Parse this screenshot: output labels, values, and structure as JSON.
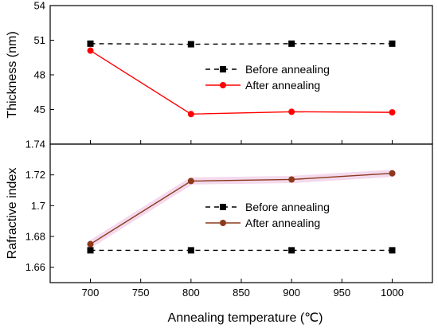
{
  "chart_data": [
    {
      "type": "line",
      "panel": "top",
      "ylabel": "Thickness (nm)",
      "xlabel": "",
      "x": [
        700,
        800,
        900,
        1000
      ],
      "xlim": [
        660,
        1040
      ],
      "ylim": [
        42,
        54
      ],
      "yticks": [
        45,
        48,
        51,
        54
      ],
      "legend_position": "center",
      "series": [
        {
          "name": "Before annealing",
          "values": [
            50.7,
            50.65,
            50.7,
            50.7
          ],
          "color": "#000000",
          "linestyle": "dashed",
          "marker": "square"
        },
        {
          "name": "After annealing",
          "values": [
            50.1,
            44.6,
            44.8,
            44.75
          ],
          "color": "#ff0000",
          "linestyle": "solid",
          "marker": "circle"
        }
      ]
    },
    {
      "type": "line",
      "panel": "bottom",
      "ylabel": "Rafractive index",
      "xlabel": "Annealing temperature (℃)",
      "x": [
        700,
        800,
        900,
        1000
      ],
      "xlim": [
        660,
        1040
      ],
      "ylim": [
        1.65,
        1.74
      ],
      "yticks": [
        1.66,
        1.68,
        1.7,
        1.72,
        1.74
      ],
      "ytick_labels": [
        "1.66",
        "1.68",
        "1.7",
        "1.72",
        "1.74"
      ],
      "xticks": [
        700,
        750,
        800,
        850,
        900,
        950,
        1000
      ],
      "legend_position": "center-bottom",
      "series": [
        {
          "name": "Before annealing",
          "values": [
            1.671,
            1.671,
            1.671,
            1.671
          ],
          "color": "#000000",
          "linestyle": "dashed",
          "marker": "square"
        },
        {
          "name": "After annealing",
          "values": [
            1.675,
            1.716,
            1.717,
            1.721
          ],
          "color": "#8b3a1a",
          "linestyle": "solid",
          "marker": "circle"
        }
      ]
    }
  ]
}
